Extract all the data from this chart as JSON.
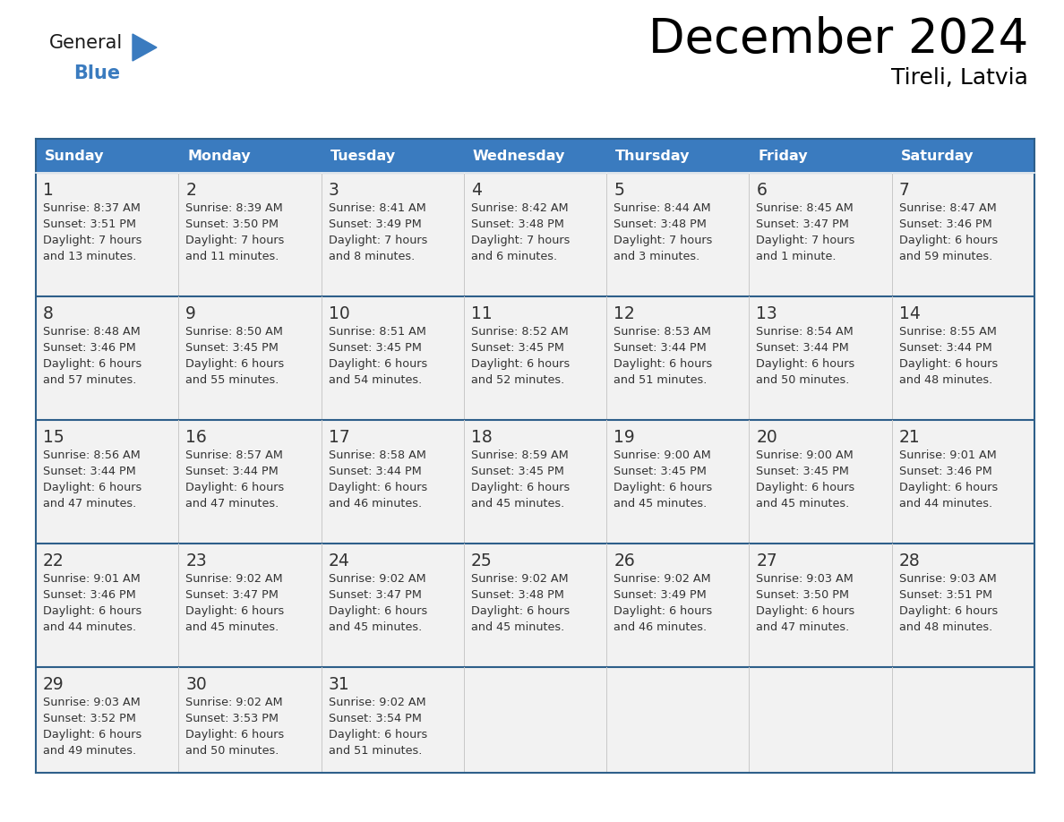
{
  "title": "December 2024",
  "subtitle": "Tireli, Latvia",
  "days_of_week": [
    "Sunday",
    "Monday",
    "Tuesday",
    "Wednesday",
    "Thursday",
    "Friday",
    "Saturday"
  ],
  "header_bg": "#3a7bbf",
  "header_text_color": "#ffffff",
  "cell_bg": "#f2f2f2",
  "row_line_color": "#2e5f8a",
  "col_line_color": "#c8c8c8",
  "text_color": "#333333",
  "calendar_data": [
    [
      {
        "day": 1,
        "sunrise": "8:37 AM",
        "sunset": "3:51 PM",
        "daylight_line1": "Daylight: 7 hours",
        "daylight_line2": "and 13 minutes."
      },
      {
        "day": 2,
        "sunrise": "8:39 AM",
        "sunset": "3:50 PM",
        "daylight_line1": "Daylight: 7 hours",
        "daylight_line2": "and 11 minutes."
      },
      {
        "day": 3,
        "sunrise": "8:41 AM",
        "sunset": "3:49 PM",
        "daylight_line1": "Daylight: 7 hours",
        "daylight_line2": "and 8 minutes."
      },
      {
        "day": 4,
        "sunrise": "8:42 AM",
        "sunset": "3:48 PM",
        "daylight_line1": "Daylight: 7 hours",
        "daylight_line2": "and 6 minutes."
      },
      {
        "day": 5,
        "sunrise": "8:44 AM",
        "sunset": "3:48 PM",
        "daylight_line1": "Daylight: 7 hours",
        "daylight_line2": "and 3 minutes."
      },
      {
        "day": 6,
        "sunrise": "8:45 AM",
        "sunset": "3:47 PM",
        "daylight_line1": "Daylight: 7 hours",
        "daylight_line2": "and 1 minute."
      },
      {
        "day": 7,
        "sunrise": "8:47 AM",
        "sunset": "3:46 PM",
        "daylight_line1": "Daylight: 6 hours",
        "daylight_line2": "and 59 minutes."
      }
    ],
    [
      {
        "day": 8,
        "sunrise": "8:48 AM",
        "sunset": "3:46 PM",
        "daylight_line1": "Daylight: 6 hours",
        "daylight_line2": "and 57 minutes."
      },
      {
        "day": 9,
        "sunrise": "8:50 AM",
        "sunset": "3:45 PM",
        "daylight_line1": "Daylight: 6 hours",
        "daylight_line2": "and 55 minutes."
      },
      {
        "day": 10,
        "sunrise": "8:51 AM",
        "sunset": "3:45 PM",
        "daylight_line1": "Daylight: 6 hours",
        "daylight_line2": "and 54 minutes."
      },
      {
        "day": 11,
        "sunrise": "8:52 AM",
        "sunset": "3:45 PM",
        "daylight_line1": "Daylight: 6 hours",
        "daylight_line2": "and 52 minutes."
      },
      {
        "day": 12,
        "sunrise": "8:53 AM",
        "sunset": "3:44 PM",
        "daylight_line1": "Daylight: 6 hours",
        "daylight_line2": "and 51 minutes."
      },
      {
        "day": 13,
        "sunrise": "8:54 AM",
        "sunset": "3:44 PM",
        "daylight_line1": "Daylight: 6 hours",
        "daylight_line2": "and 50 minutes."
      },
      {
        "day": 14,
        "sunrise": "8:55 AM",
        "sunset": "3:44 PM",
        "daylight_line1": "Daylight: 6 hours",
        "daylight_line2": "and 48 minutes."
      }
    ],
    [
      {
        "day": 15,
        "sunrise": "8:56 AM",
        "sunset": "3:44 PM",
        "daylight_line1": "Daylight: 6 hours",
        "daylight_line2": "and 47 minutes."
      },
      {
        "day": 16,
        "sunrise": "8:57 AM",
        "sunset": "3:44 PM",
        "daylight_line1": "Daylight: 6 hours",
        "daylight_line2": "and 47 minutes."
      },
      {
        "day": 17,
        "sunrise": "8:58 AM",
        "sunset": "3:44 PM",
        "daylight_line1": "Daylight: 6 hours",
        "daylight_line2": "and 46 minutes."
      },
      {
        "day": 18,
        "sunrise": "8:59 AM",
        "sunset": "3:45 PM",
        "daylight_line1": "Daylight: 6 hours",
        "daylight_line2": "and 45 minutes."
      },
      {
        "day": 19,
        "sunrise": "9:00 AM",
        "sunset": "3:45 PM",
        "daylight_line1": "Daylight: 6 hours",
        "daylight_line2": "and 45 minutes."
      },
      {
        "day": 20,
        "sunrise": "9:00 AM",
        "sunset": "3:45 PM",
        "daylight_line1": "Daylight: 6 hours",
        "daylight_line2": "and 45 minutes."
      },
      {
        "day": 21,
        "sunrise": "9:01 AM",
        "sunset": "3:46 PM",
        "daylight_line1": "Daylight: 6 hours",
        "daylight_line2": "and 44 minutes."
      }
    ],
    [
      {
        "day": 22,
        "sunrise": "9:01 AM",
        "sunset": "3:46 PM",
        "daylight_line1": "Daylight: 6 hours",
        "daylight_line2": "and 44 minutes."
      },
      {
        "day": 23,
        "sunrise": "9:02 AM",
        "sunset": "3:47 PM",
        "daylight_line1": "Daylight: 6 hours",
        "daylight_line2": "and 45 minutes."
      },
      {
        "day": 24,
        "sunrise": "9:02 AM",
        "sunset": "3:47 PM",
        "daylight_line1": "Daylight: 6 hours",
        "daylight_line2": "and 45 minutes."
      },
      {
        "day": 25,
        "sunrise": "9:02 AM",
        "sunset": "3:48 PM",
        "daylight_line1": "Daylight: 6 hours",
        "daylight_line2": "and 45 minutes."
      },
      {
        "day": 26,
        "sunrise": "9:02 AM",
        "sunset": "3:49 PM",
        "daylight_line1": "Daylight: 6 hours",
        "daylight_line2": "and 46 minutes."
      },
      {
        "day": 27,
        "sunrise": "9:03 AM",
        "sunset": "3:50 PM",
        "daylight_line1": "Daylight: 6 hours",
        "daylight_line2": "and 47 minutes."
      },
      {
        "day": 28,
        "sunrise": "9:03 AM",
        "sunset": "3:51 PM",
        "daylight_line1": "Daylight: 6 hours",
        "daylight_line2": "and 48 minutes."
      }
    ],
    [
      {
        "day": 29,
        "sunrise": "9:03 AM",
        "sunset": "3:52 PM",
        "daylight_line1": "Daylight: 6 hours",
        "daylight_line2": "and 49 minutes."
      },
      {
        "day": 30,
        "sunrise": "9:02 AM",
        "sunset": "3:53 PM",
        "daylight_line1": "Daylight: 6 hours",
        "daylight_line2": "and 50 minutes."
      },
      {
        "day": 31,
        "sunrise": "9:02 AM",
        "sunset": "3:54 PM",
        "daylight_line1": "Daylight: 6 hours",
        "daylight_line2": "and 51 minutes."
      },
      null,
      null,
      null,
      null
    ]
  ]
}
